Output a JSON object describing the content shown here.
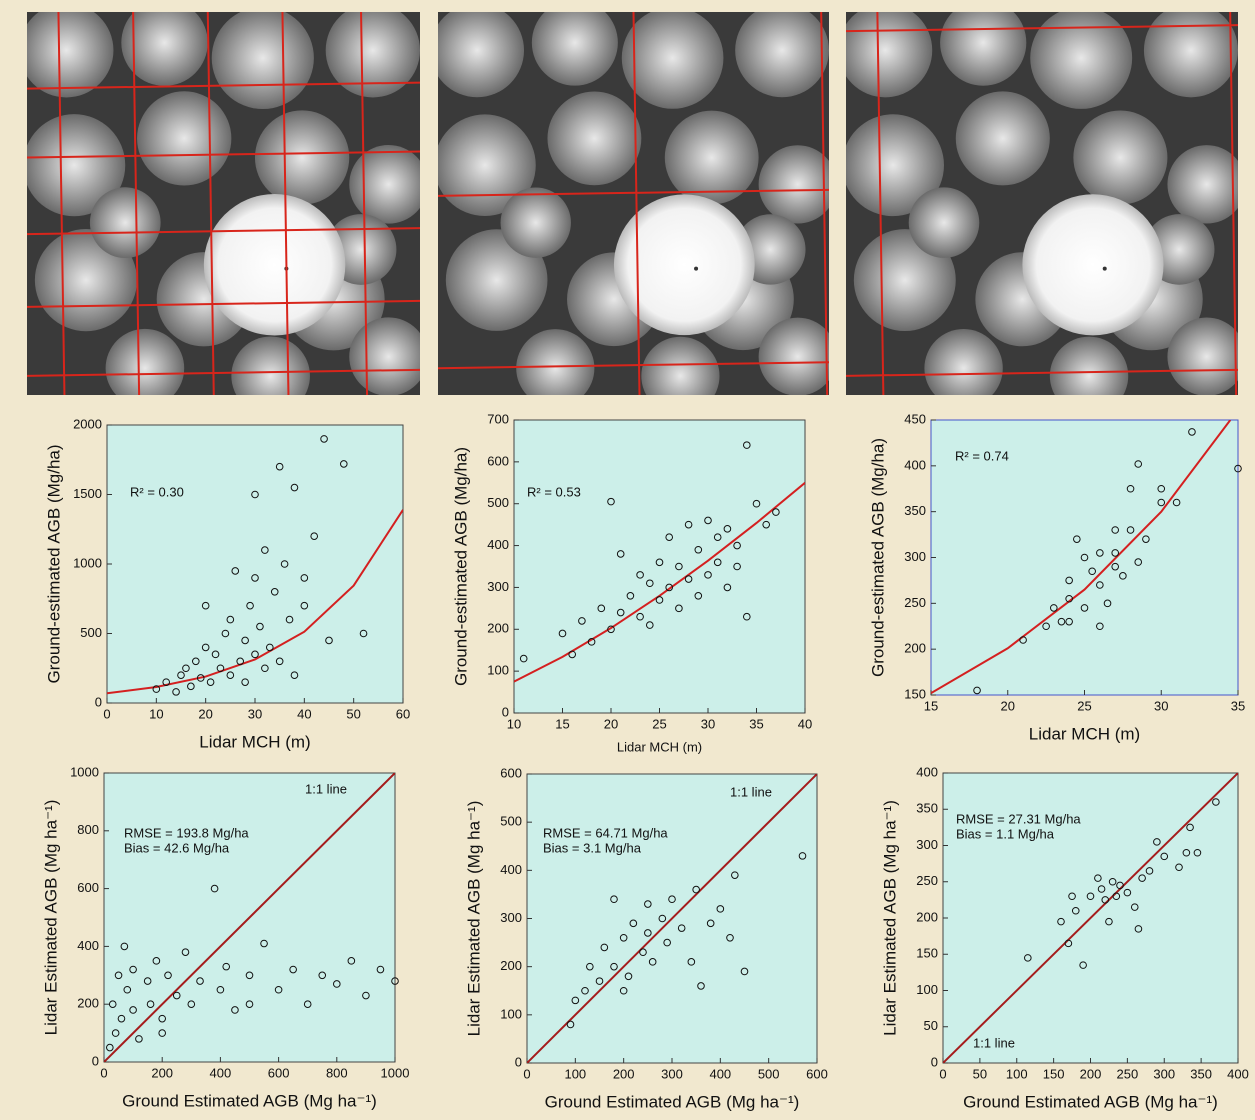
{
  "chart_data": [
    {
      "type": "scatter",
      "x_label": "Lidar MCH (m)",
      "y_label": "Ground-estimated AGB (Mg/ha)",
      "xlim": [
        0,
        60
      ],
      "ylim": [
        0,
        2000
      ],
      "xticks": [
        0,
        10,
        20,
        30,
        40,
        50,
        60
      ],
      "yticks": [
        0,
        500,
        1000,
        1500,
        2000
      ],
      "annotations": [
        "R² = 0.30"
      ],
      "x": [
        10,
        12,
        14,
        15,
        16,
        17,
        18,
        19,
        20,
        20,
        21,
        22,
        23,
        24,
        25,
        25,
        26,
        27,
        28,
        28,
        29,
        30,
        30,
        31,
        32,
        32,
        33,
        34,
        35,
        35,
        36,
        37,
        38,
        38,
        40,
        42,
        44,
        45,
        48,
        52,
        30,
        40
      ],
      "y": [
        100,
        150,
        80,
        200,
        250,
        120,
        300,
        180,
        400,
        700,
        150,
        350,
        250,
        500,
        200,
        600,
        950,
        300,
        450,
        150,
        700,
        350,
        900,
        550,
        250,
        1100,
        400,
        800,
        1700,
        300,
        1000,
        600,
        1550,
        200,
        700,
        1200,
        1900,
        450,
        1720,
        500,
        1500,
        900
      ],
      "line": {
        "x": [
          0,
          10,
          20,
          30,
          40,
          50,
          60
        ],
        "y": [
          70,
          115,
          190,
          313,
          513,
          845,
          1390
        ]
      },
      "line_color": "#d42020"
    },
    {
      "type": "scatter",
      "x_label": "Lidar MCH (m)",
      "y_label": "Ground-estimated AGB (Mg/ha)",
      "xlim": [
        10,
        40
      ],
      "ylim": [
        0,
        700
      ],
      "xticks": [
        10,
        15,
        20,
        25,
        30,
        35,
        40
      ],
      "yticks": [
        0,
        100,
        200,
        300,
        400,
        500,
        600,
        700
      ],
      "annotations": [
        "R² = 0.53"
      ],
      "x": [
        11,
        15,
        16,
        17,
        18,
        19,
        20,
        20,
        21,
        21,
        22,
        23,
        23,
        24,
        24,
        25,
        25,
        26,
        26,
        27,
        27,
        28,
        28,
        29,
        29,
        30,
        30,
        31,
        32,
        32,
        33,
        34,
        34,
        35,
        36,
        37,
        33,
        31
      ],
      "y": [
        130,
        190,
        140,
        220,
        170,
        250,
        200,
        505,
        380,
        240,
        280,
        230,
        330,
        310,
        210,
        360,
        270,
        300,
        420,
        250,
        350,
        320,
        450,
        280,
        390,
        460,
        330,
        360,
        300,
        440,
        400,
        230,
        640,
        500,
        450,
        480,
        350,
        420
      ],
      "line": {
        "x": [
          10,
          15,
          20,
          25,
          30,
          35,
          40
        ],
        "y": [
          75,
          134,
          203,
          280,
          364,
          454,
          550
        ]
      },
      "line_color": "#d42020"
    },
    {
      "type": "scatter",
      "x_label": "Lidar MCH (m)",
      "y_label": "Ground-estimated AGB (Mg/ha)",
      "xlim": [
        15,
        35
      ],
      "ylim": [
        150,
        450
      ],
      "xticks": [
        15,
        20,
        25,
        30,
        35
      ],
      "yticks": [
        150,
        200,
        250,
        300,
        350,
        400,
        450
      ],
      "annotations": [
        "R² = 0.74"
      ],
      "x": [
        18,
        21,
        22.5,
        23,
        23.5,
        24,
        24,
        24.5,
        25,
        25,
        25.5,
        26,
        26,
        26.5,
        27,
        27,
        27.5,
        28,
        28,
        28.5,
        28.5,
        29,
        30,
        30,
        31,
        32,
        35,
        27,
        26,
        24
      ],
      "y": [
        155,
        210,
        225,
        245,
        230,
        255,
        275,
        320,
        300,
        245,
        285,
        305,
        225,
        250,
        290,
        330,
        280,
        375,
        330,
        402,
        295,
        320,
        360,
        375,
        360,
        437,
        397,
        305,
        270,
        230
      ],
      "line": {
        "x": [
          15,
          20,
          25,
          30,
          34.5
        ],
        "y": [
          152,
          201,
          265,
          350,
          450
        ]
      },
      "line_color": "#d42020"
    },
    {
      "type": "scatter",
      "x_label": "Ground Estimated AGB (Mg ha⁻¹)",
      "y_label": "Lidar Estimated AGB (Mg ha⁻¹)",
      "xlim": [
        0,
        1000
      ],
      "ylim": [
        0,
        1000
      ],
      "xticks": [
        0,
        200,
        400,
        600,
        800,
        1000
      ],
      "yticks": [
        0,
        200,
        400,
        600,
        800,
        1000
      ],
      "annotations": [
        "1:1 line",
        "RMSE = 193.8 Mg/ha",
        "Bias = 42.6 Mg/ha"
      ],
      "x": [
        20,
        30,
        40,
        50,
        60,
        70,
        80,
        100,
        100,
        120,
        150,
        160,
        180,
        200,
        220,
        250,
        280,
        300,
        330,
        380,
        400,
        420,
        450,
        500,
        550,
        600,
        650,
        700,
        750,
        800,
        850,
        900,
        950,
        1000,
        200,
        500
      ],
      "y": [
        50,
        200,
        100,
        300,
        150,
        400,
        250,
        180,
        320,
        80,
        280,
        200,
        350,
        150,
        300,
        230,
        380,
        200,
        280,
        600,
        250,
        330,
        180,
        300,
        410,
        250,
        320,
        200,
        300,
        270,
        350,
        230,
        320,
        280,
        100,
        200
      ],
      "line": {
        "x": [
          0,
          1000
        ],
        "y": [
          0,
          1000
        ]
      },
      "line_color": "#a51c1c"
    },
    {
      "type": "scatter",
      "x_label": "Ground Estimated AGB (Mg ha⁻¹)",
      "y_label": "Lidar Estimated AGB (Mg ha⁻¹)",
      "xlim": [
        0,
        600
      ],
      "ylim": [
        0,
        600
      ],
      "xticks": [
        0,
        100,
        200,
        300,
        400,
        500,
        600
      ],
      "yticks": [
        0,
        100,
        200,
        300,
        400,
        500,
        600
      ],
      "annotations": [
        "1:1 line",
        "RMSE = 64.71 Mg/ha",
        "Bias = 3.1 Mg/ha"
      ],
      "x": [
        90,
        100,
        120,
        130,
        150,
        160,
        180,
        180,
        200,
        210,
        220,
        240,
        250,
        260,
        280,
        290,
        300,
        320,
        340,
        350,
        360,
        380,
        400,
        420,
        430,
        450,
        570,
        250,
        200
      ],
      "y": [
        80,
        130,
        150,
        200,
        170,
        240,
        340,
        200,
        260,
        180,
        290,
        230,
        330,
        210,
        300,
        250,
        340,
        280,
        210,
        360,
        160,
        290,
        320,
        260,
        390,
        190,
        430,
        270,
        150
      ],
      "line": {
        "x": [
          0,
          600
        ],
        "y": [
          0,
          600
        ]
      },
      "line_color": "#a51c1c"
    },
    {
      "type": "scatter",
      "x_label": "Ground Estimated AGB (Mg ha⁻¹)",
      "y_label": "Lidar Estimated AGB (Mg ha⁻¹)",
      "xlim": [
        0,
        400
      ],
      "ylim": [
        0,
        400
      ],
      "xticks": [
        0,
        50,
        100,
        150,
        200,
        250,
        300,
        350,
        400
      ],
      "yticks": [
        0,
        50,
        100,
        150,
        200,
        250,
        300,
        350,
        400
      ],
      "annotations": [
        "RMSE = 27.31 Mg/ha",
        "Bias = 1.1 Mg/ha",
        "1:1 line"
      ],
      "x": [
        115,
        160,
        170,
        180,
        190,
        200,
        210,
        215,
        220,
        225,
        230,
        235,
        240,
        250,
        260,
        265,
        270,
        280,
        290,
        300,
        320,
        330,
        335,
        345,
        370,
        175
      ],
      "y": [
        145,
        195,
        165,
        210,
        135,
        230,
        255,
        240,
        225,
        195,
        250,
        230,
        245,
        235,
        215,
        185,
        255,
        265,
        305,
        285,
        270,
        290,
        325,
        290,
        360,
        230
      ],
      "line": {
        "x": [
          0,
          400
        ],
        "y": [
          0,
          400
        ]
      },
      "line_color": "#a51c1c"
    }
  ]
}
